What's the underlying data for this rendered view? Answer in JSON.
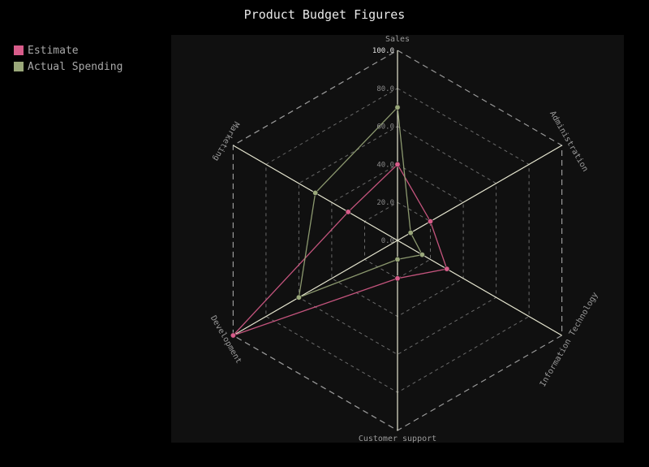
{
  "chart_data": {
    "type": "radar",
    "title": "Product Budget Figures",
    "axes": [
      "Sales",
      "Administration",
      "Information Technology",
      "Customer support",
      "Development",
      "Marketing"
    ],
    "r_ticks": [
      "0.0",
      "20.0",
      "40.0",
      "60.0",
      "80.0",
      "100.0"
    ],
    "r_range": [
      0,
      100
    ],
    "grid": true,
    "grid_shape": "polygon",
    "legend_position": "top-left",
    "background": "#101010",
    "series": [
      {
        "name": "Estimate",
        "color": "#d85c8a",
        "values": [
          40,
          20,
          30,
          20,
          100,
          30
        ]
      },
      {
        "name": "Actual Spending",
        "color": "#9aa87a",
        "values": [
          70,
          8,
          15,
          10,
          60,
          50
        ]
      }
    ]
  }
}
